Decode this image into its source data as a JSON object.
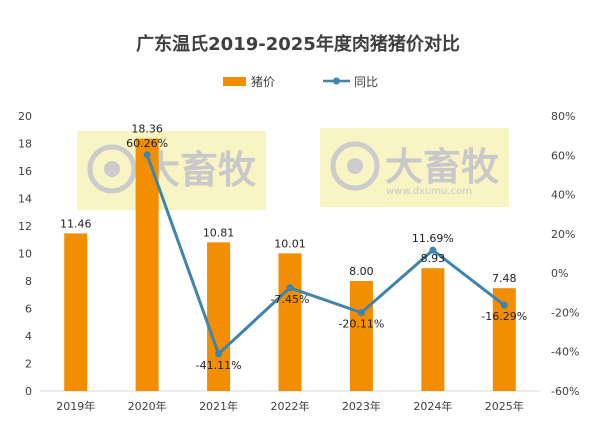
{
  "chart_data": {
    "type": "bar",
    "title": "广东温氏2019-2025年度肉猪猪价对比",
    "categories": [
      "2019年",
      "2020年",
      "2021年",
      "2022年",
      "2023年",
      "2024年",
      "2025年"
    ],
    "series": [
      {
        "name": "猪价",
        "type": "bar",
        "axis": "left",
        "values": [
          11.46,
          18.36,
          10.81,
          10.01,
          8.0,
          8.93,
          7.48
        ],
        "labels": [
          "11.46",
          "18.36",
          "10.81",
          "10.01",
          "8.00",
          "8.93",
          "7.48"
        ],
        "color": "#f28e00"
      },
      {
        "name": "同比",
        "type": "line",
        "axis": "right",
        "values": [
          null,
          60.26,
          -41.11,
          -7.45,
          -20.11,
          11.69,
          -16.29
        ],
        "labels": [
          null,
          "60.26%",
          "-41.11%",
          "-7.45%",
          "-20.11%",
          "11.69%",
          "-16.29%"
        ],
        "color": "#3f84ad"
      }
    ],
    "y_left": {
      "ylim": [
        0,
        20
      ],
      "ticks": [
        "0",
        "2",
        "4",
        "6",
        "8",
        "10",
        "12",
        "14",
        "16",
        "18",
        "20"
      ]
    },
    "y_right": {
      "ylim": [
        -60,
        80
      ],
      "ticks": [
        "-60%",
        "-40%",
        "-20%",
        "0%",
        "20%",
        "40%",
        "60%",
        "80%"
      ]
    },
    "legend": {
      "position": "top"
    },
    "grid": false
  },
  "watermark": {
    "text": "大畜牧",
    "url": "www.dxumu.com"
  }
}
